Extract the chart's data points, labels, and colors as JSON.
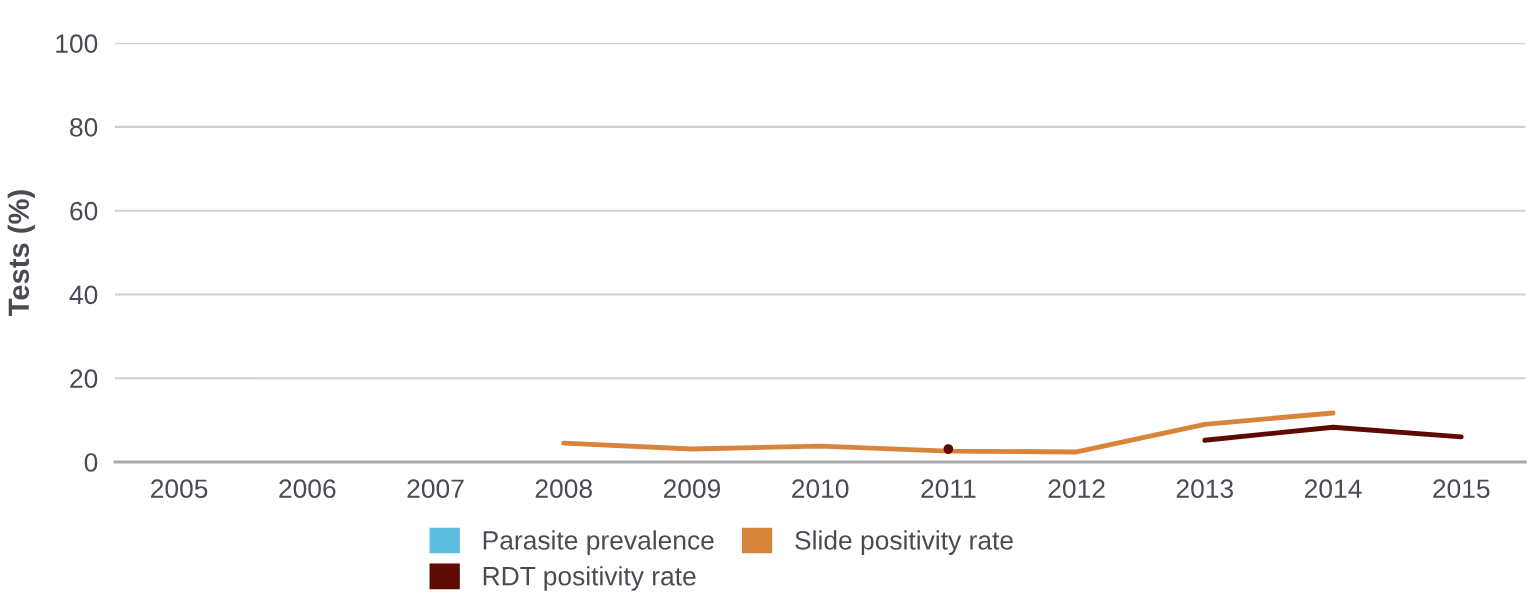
{
  "chart_data": {
    "type": "line",
    "ylabel": "Tests (%)",
    "categories": [
      "2005",
      "2006",
      "2007",
      "2008",
      "2009",
      "2010",
      "2011",
      "2012",
      "2013",
      "2014",
      "2015"
    ],
    "series": [
      {
        "name": "Parasite prevalence",
        "color": "#5bbcdd",
        "values": [
          null,
          null,
          null,
          null,
          null,
          null,
          null,
          null,
          null,
          null,
          null
        ]
      },
      {
        "name": "Slide positivity rate",
        "color": "#d9843b",
        "values": [
          null,
          null,
          null,
          4.5,
          3.1,
          3.8,
          2.6,
          2.4,
          9,
          11.7,
          null
        ]
      },
      {
        "name": "RDT positivity rate",
        "color": "#5c0a02",
        "values": [
          null,
          null,
          null,
          null,
          null,
          null,
          3.1,
          null,
          5.2,
          8.3,
          6
        ]
      }
    ],
    "ylim": [
      0,
      100
    ],
    "yticks": [
      0,
      20,
      40,
      60,
      80,
      100
    ],
    "grid": "y",
    "legend": "bottom",
    "marker": "none",
    "line_style": "solid"
  }
}
